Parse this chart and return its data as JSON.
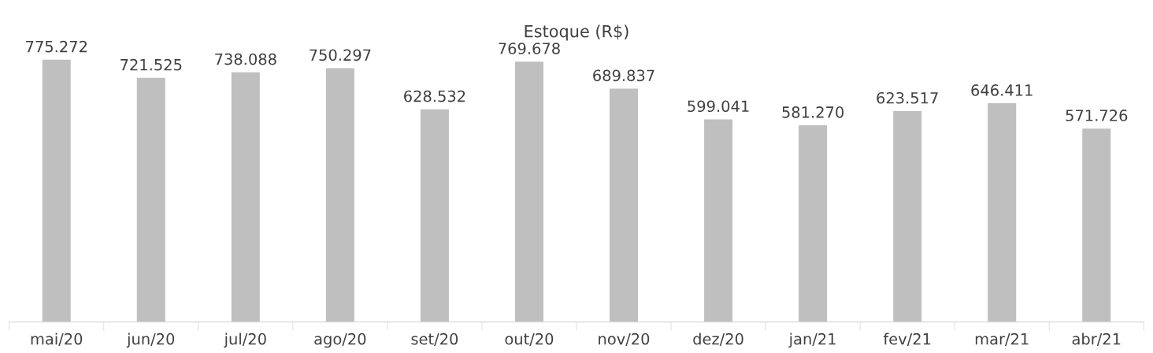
{
  "chart_data": {
    "type": "bar",
    "title": "Estoque (R$)",
    "categories": [
      "mai/20",
      "jun/20",
      "jul/20",
      "ago/20",
      "set/20",
      "out/20",
      "nov/20",
      "dez/20",
      "jan/21",
      "fev/21",
      "mar/21",
      "abr/21"
    ],
    "values": [
      775272,
      721525,
      738088,
      750297,
      628532,
      769678,
      689837,
      599041,
      581270,
      623517,
      646411,
      571726
    ],
    "value_labels": [
      "775.272",
      "721.525",
      "738.088",
      "750.297",
      "628.532",
      "769.678",
      "689.837",
      "599.041",
      "581.270",
      "623.517",
      "646.411",
      "571.726"
    ],
    "color": "#bfbfbf",
    "tick_labels": "x"
  }
}
